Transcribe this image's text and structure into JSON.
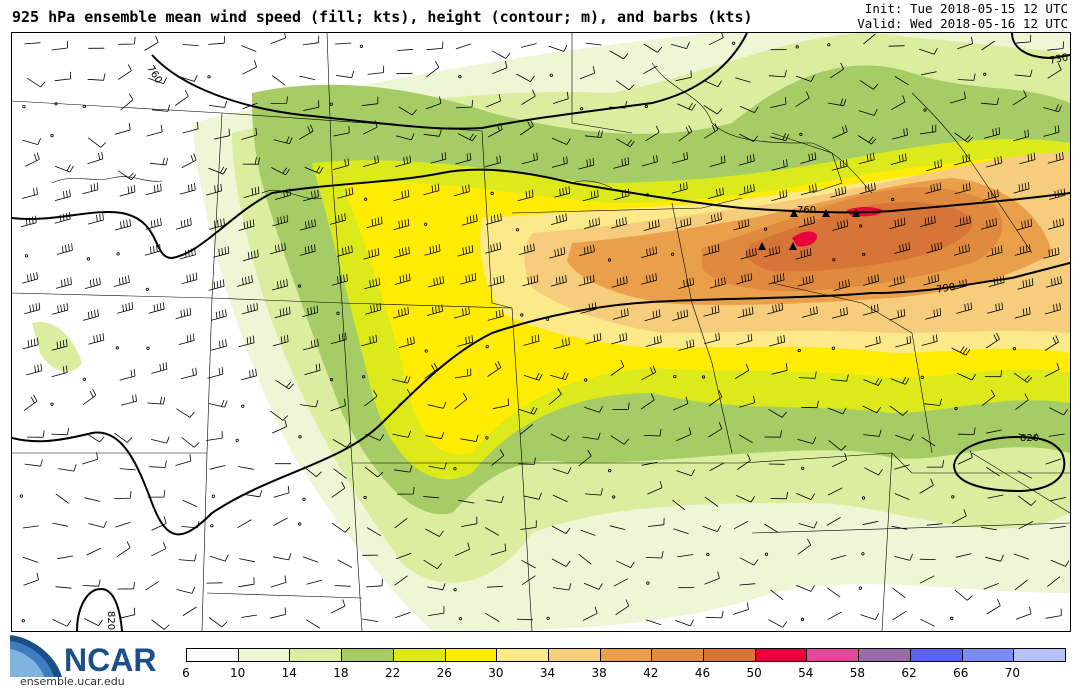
{
  "header": {
    "title": "925 hPa ensemble mean wind speed (fill; kts), height (contour; m), and barbs (kts)",
    "init": "Init: Tue 2018-05-15 12 UTC",
    "valid": "Valid: Wed 2018-05-16 12 UTC"
  },
  "map": {
    "contour_labels": [
      "760",
      "730",
      "760",
      "790",
      "820",
      "820"
    ],
    "colors": {
      "c6_10": "#ffffff",
      "c10_14": "#eef6d6",
      "c14_18": "#dbeea0",
      "c18_22": "#a6cc66",
      "c22_26": "#dcea1c",
      "c26_30": "#ffec00",
      "c30_34": "#fbe98a",
      "c34_38": "#f5cd7c",
      "c38_42": "#eaa04b",
      "c42_46": "#e08a40",
      "c46_50": "#d77437",
      "c50_54": "#e8003f"
    }
  },
  "colorbar": {
    "colors": [
      "#ffffff",
      "#eef6d6",
      "#dbeea0",
      "#a6cc66",
      "#dcea1c",
      "#ffec00",
      "#fbe98a",
      "#f5cd7c",
      "#eaa04b",
      "#e08a40",
      "#d77437",
      "#e8003f",
      "#e0489a",
      "#9a6aab",
      "#5a63ee",
      "#7d8cf0",
      "#b3c2f7"
    ],
    "ticks": [
      "6",
      "10",
      "14",
      "18",
      "22",
      "26",
      "30",
      "34",
      "38",
      "42",
      "46",
      "50",
      "54",
      "58",
      "62",
      "66",
      "70"
    ]
  },
  "logo": {
    "text": "NCAR",
    "url": "ensemble.ucar.edu"
  }
}
